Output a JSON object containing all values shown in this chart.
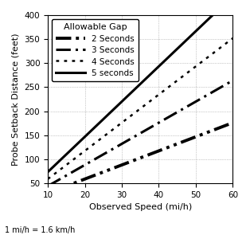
{
  "xlabel": "Observed Speed (mi/h)",
  "ylabel": "Probe Setback Distance (feet)",
  "footnote": "1 mi/h = 1.6 km/h",
  "xlim": [
    10,
    60
  ],
  "ylim": [
    50,
    400
  ],
  "xticks": [
    10,
    20,
    30,
    40,
    50,
    60
  ],
  "yticks": [
    50,
    100,
    150,
    200,
    250,
    300,
    350,
    400
  ],
  "x_start": 10,
  "x_end": 60,
  "conversion": 1.46667,
  "gaps": [
    2,
    3,
    4,
    5
  ],
  "gap_labels": [
    "2 Seconds",
    "3 Seconds",
    "4 Seconds",
    "5 seconds"
  ],
  "linestyles": [
    {
      "lw": 2.8,
      "dashes": [
        5,
        1.5,
        1,
        1.5,
        1,
        1.5
      ],
      "color": "#000000"
    },
    {
      "lw": 2.2,
      "dashes": [
        6,
        2,
        1,
        2
      ],
      "color": "#000000"
    },
    {
      "lw": 1.8,
      "dashes": [
        1.5,
        2.5
      ],
      "color": "#000000"
    },
    {
      "lw": 2.2,
      "dashes": null,
      "color": "#000000"
    }
  ],
  "legend_title": "Allowable Gap",
  "legend_loc": "upper left",
  "grid_style": ":",
  "background_color": "#ffffff",
  "xlabel_fontsize": 8,
  "ylabel_fontsize": 8,
  "tick_fontsize": 7.5,
  "legend_fontsize": 7.5
}
